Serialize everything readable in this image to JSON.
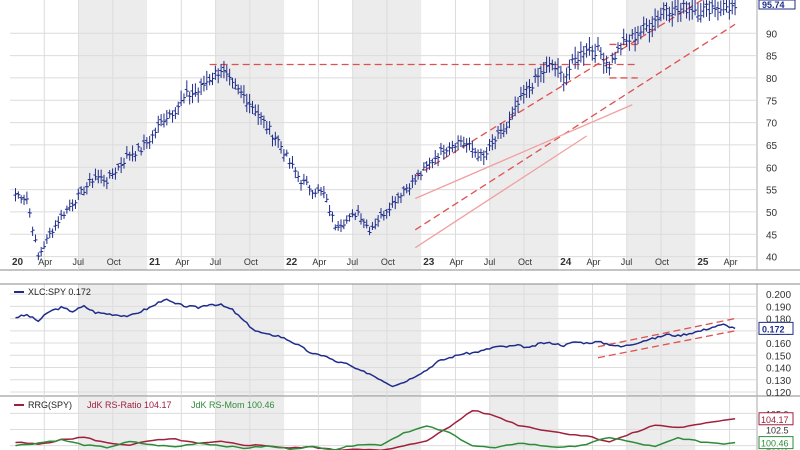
{
  "chart_data": [
    {
      "type": "bar",
      "subtype": "ohlc-weekly",
      "title": "",
      "xlabel": "",
      "ylabel": "",
      "x_tick_labels": [
        "20",
        "Apr",
        "Jul",
        "Oct",
        "21",
        "Apr",
        "Jul",
        "Oct",
        "22",
        "Apr",
        "Jul",
        "Oct",
        "23",
        "Apr",
        "Jul",
        "Oct",
        "24",
        "Apr",
        "Jul",
        "Oct",
        "25",
        "Apr"
      ],
      "y_tick_labels": [
        "40",
        "45",
        "50",
        "55",
        "60",
        "65",
        "70",
        "75",
        "80",
        "85",
        "90"
      ],
      "ylim": [
        37,
        97
      ],
      "last_value_label": "95.74",
      "series": [
        {
          "name": "",
          "color": "#1f2d8a",
          "x": [
            "2020-01",
            "2020-02",
            "2020-03",
            "2020-04",
            "2020-05",
            "2020-06",
            "2020-07",
            "2020-08",
            "2020-09",
            "2020-10",
            "2020-11",
            "2020-12",
            "2021-01",
            "2021-02",
            "2021-03",
            "2021-04",
            "2021-05",
            "2021-06",
            "2021-07",
            "2021-08",
            "2021-09",
            "2021-10",
            "2021-11",
            "2021-12",
            "2022-01",
            "2022-02",
            "2022-03",
            "2022-04",
            "2022-05",
            "2022-06",
            "2022-07",
            "2022-08",
            "2022-09",
            "2022-10",
            "2022-11",
            "2022-12",
            "2023-01",
            "2023-02",
            "2023-03",
            "2023-04",
            "2023-05",
            "2023-06",
            "2023-07",
            "2023-08",
            "2023-09",
            "2023-10",
            "2023-11",
            "2023-12",
            "2024-01",
            "2024-02",
            "2024-03",
            "2024-04",
            "2024-05",
            "2024-06",
            "2024-07",
            "2024-08",
            "2024-09",
            "2024-10",
            "2024-11",
            "2024-12",
            "2025-01",
            "2025-02",
            "2025-03",
            "2025-04"
          ],
          "values": [
            54,
            53,
            40,
            45,
            49,
            52,
            55,
            58,
            57,
            60,
            63,
            64,
            67,
            71,
            73,
            76,
            77,
            80,
            82,
            78,
            76,
            73,
            69,
            66,
            61,
            57,
            55,
            54,
            47,
            48,
            50,
            46,
            49,
            52,
            55,
            57,
            60,
            63,
            65,
            66,
            64,
            62,
            66,
            69,
            74,
            78,
            81,
            83,
            80,
            84,
            87,
            86,
            83,
            87,
            89,
            91,
            93,
            96,
            95,
            96,
            95,
            96,
            96,
            95.74
          ]
        }
      ],
      "annotations": [
        {
          "type": "horizontal-line",
          "value": 83,
          "from": "2021-06",
          "to": "2024-07",
          "color": "#e05050",
          "style": "dashed"
        },
        {
          "type": "channel-line",
          "from": [
            "2022-12",
            58
          ],
          "to": [
            "2025-04",
            102
          ],
          "color": "#e05050",
          "style": "dashed"
        },
        {
          "type": "channel-line",
          "from": [
            "2022-12",
            46
          ],
          "to": [
            "2025-04",
            92
          ],
          "color": "#e05050",
          "style": "dashed"
        },
        {
          "type": "channel-line",
          "from": [
            "2022-12",
            53
          ],
          "to": [
            "2024-07",
            74
          ],
          "color": "#f0a0a0",
          "style": "solid"
        },
        {
          "type": "channel-line",
          "from": [
            "2022-12",
            42
          ],
          "to": [
            "2024-03",
            67
          ],
          "color": "#f0a0a0",
          "style": "solid"
        },
        {
          "type": "horizontal-line",
          "value": 87.5,
          "from": "2024-05",
          "to": "2024-07",
          "color": "#e05050",
          "style": "dashed"
        },
        {
          "type": "horizontal-line",
          "value": 80,
          "from": "2024-05",
          "to": "2024-07",
          "color": "#e05050",
          "style": "dashed"
        }
      ]
    },
    {
      "type": "line",
      "legend": "XLC:SPY 0.172",
      "y_tick_labels": [
        "0.120",
        "0.130",
        "0.140",
        "0.150",
        "0.160",
        "0.170",
        "0.180",
        "0.190",
        "0.200"
      ],
      "ylim": [
        0.12,
        0.205
      ],
      "last_value_label": "0.172",
      "series": [
        {
          "name": "XLC:SPY",
          "color": "#1f2d8a",
          "x": [
            "2020-01",
            "2020-02",
            "2020-03",
            "2020-04",
            "2020-05",
            "2020-06",
            "2020-07",
            "2020-08",
            "2020-09",
            "2020-10",
            "2020-11",
            "2020-12",
            "2021-01",
            "2021-02",
            "2021-03",
            "2021-04",
            "2021-05",
            "2021-06",
            "2021-07",
            "2021-08",
            "2021-09",
            "2021-10",
            "2021-11",
            "2021-12",
            "2022-01",
            "2022-02",
            "2022-03",
            "2022-04",
            "2022-05",
            "2022-06",
            "2022-07",
            "2022-08",
            "2022-09",
            "2022-10",
            "2022-11",
            "2022-12",
            "2023-01",
            "2023-02",
            "2023-03",
            "2023-04",
            "2023-05",
            "2023-06",
            "2023-07",
            "2023-08",
            "2023-09",
            "2023-10",
            "2023-11",
            "2023-12",
            "2024-01",
            "2024-02",
            "2024-03",
            "2024-04",
            "2024-05",
            "2024-06",
            "2024-07",
            "2024-08",
            "2024-09",
            "2024-10",
            "2024-11",
            "2024-12",
            "2025-01",
            "2025-02",
            "2025-03",
            "2025-04"
          ],
          "values": [
            0.181,
            0.183,
            0.178,
            0.186,
            0.189,
            0.186,
            0.19,
            0.185,
            0.184,
            0.183,
            0.182,
            0.186,
            0.19,
            0.196,
            0.192,
            0.19,
            0.189,
            0.192,
            0.191,
            0.187,
            0.178,
            0.17,
            0.167,
            0.166,
            0.162,
            0.157,
            0.151,
            0.15,
            0.145,
            0.143,
            0.138,
            0.135,
            0.13,
            0.125,
            0.128,
            0.133,
            0.138,
            0.145,
            0.148,
            0.151,
            0.152,
            0.154,
            0.157,
            0.157,
            0.158,
            0.156,
            0.16,
            0.16,
            0.158,
            0.161,
            0.16,
            0.161,
            0.159,
            0.157,
            0.159,
            0.162,
            0.164,
            0.167,
            0.166,
            0.168,
            0.17,
            0.173,
            0.175,
            0.172
          ]
        }
      ],
      "annotations": [
        {
          "type": "channel-line",
          "from": [
            "2024-04",
            0.157
          ],
          "to": [
            "2025-04",
            0.18
          ],
          "color": "#e05050",
          "style": "dashed"
        },
        {
          "type": "channel-line",
          "from": [
            "2024-04",
            0.148
          ],
          "to": [
            "2025-04",
            0.17
          ],
          "color": "#e05050",
          "style": "dashed"
        }
      ]
    },
    {
      "type": "line",
      "legend_prefix": "RRG(SPY)",
      "legend_items": [
        "JdK RS-Ratio 104.17",
        "JdK RS-Mom 100.46"
      ],
      "y_tick_labels": [
        "105.0",
        "102.5",
        "100.0"
      ],
      "ylim": [
        99,
        106
      ],
      "last_value_labels": [
        "104.17",
        "100.46"
      ],
      "series": [
        {
          "name": "JdK RS-Ratio",
          "color": "#a0203c",
          "x": [
            "2020-01",
            "2020-03",
            "2020-05",
            "2020-07",
            "2020-09",
            "2020-11",
            "2021-01",
            "2021-03",
            "2021-05",
            "2021-07",
            "2021-09",
            "2021-11",
            "2022-01",
            "2022-03",
            "2022-05",
            "2022-07",
            "2022-09",
            "2022-11",
            "2023-01",
            "2023-03",
            "2023-05",
            "2023-07",
            "2023-09",
            "2023-11",
            "2024-01",
            "2024-03",
            "2024-05",
            "2024-07",
            "2024-09",
            "2024-11",
            "2025-01",
            "2025-03",
            "2025-04"
          ],
          "values": [
            100.5,
            100.2,
            100.9,
            101.3,
            100.4,
            100.1,
            100.8,
            101.0,
            100.3,
            100.6,
            100.1,
            100.0,
            99.6,
            99.8,
            99.3,
            99.5,
            99.2,
            99.9,
            100.8,
            102.9,
            105.5,
            104.6,
            103.2,
            102.5,
            101.9,
            101.5,
            100.6,
            101.9,
            103.2,
            102.8,
            103.3,
            104.0,
            104.17
          ]
        },
        {
          "name": "JdK RS-Mom",
          "color": "#2e8b3a",
          "x": [
            "2020-01",
            "2020-03",
            "2020-05",
            "2020-07",
            "2020-09",
            "2020-11",
            "2021-01",
            "2021-03",
            "2021-05",
            "2021-07",
            "2021-09",
            "2021-11",
            "2022-01",
            "2022-03",
            "2022-05",
            "2022-07",
            "2022-09",
            "2022-11",
            "2023-01",
            "2023-03",
            "2023-05",
            "2023-07",
            "2023-09",
            "2023-11",
            "2024-01",
            "2024-03",
            "2024-05",
            "2024-07",
            "2024-09",
            "2024-11",
            "2025-01",
            "2025-03",
            "2025-04"
          ],
          "values": [
            100.0,
            100.4,
            100.9,
            100.1,
            99.7,
            100.6,
            100.1,
            99.8,
            100.4,
            100.0,
            99.6,
            99.9,
            99.5,
            99.8,
            99.4,
            100.2,
            100.1,
            102.0,
            103.0,
            102.0,
            100.0,
            99.6,
            100.4,
            100.0,
            99.7,
            100.2,
            101.3,
            100.5,
            99.8,
            101.2,
            100.6,
            100.3,
            100.46
          ]
        }
      ]
    }
  ]
}
